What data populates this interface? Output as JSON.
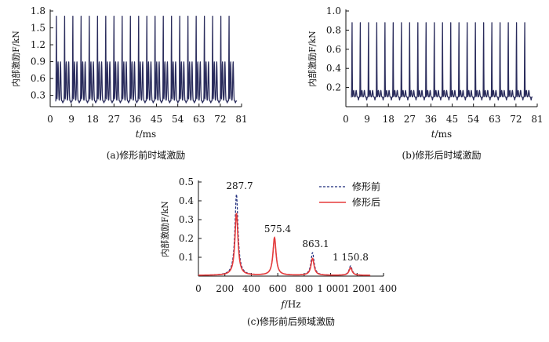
{
  "chart_data": [
    {
      "id": "a",
      "type": "line",
      "caption": "(a)修形前时域激励",
      "ylabel": "内部激励F/kN",
      "xlabel_italic": "t",
      "xlabel_unit": "/ms",
      "xlim": [
        0,
        81
      ],
      "ylim": [
        0.1,
        1.8
      ],
      "xticks": [
        0,
        9,
        18,
        27,
        36,
        45,
        54,
        63,
        72,
        81
      ],
      "yticks": [
        0.3,
        0.6,
        0.9,
        1.2,
        1.5,
        1.8
      ],
      "ytick_labels": [
        "0.3",
        "0.6",
        "0.9",
        "1.2",
        "1.5",
        "1.8"
      ],
      "series": [
        {
          "name": "修形前",
          "color": "#2a2c5c",
          "period_ms": 3.48,
          "x_start": 2.2,
          "x_end": 79,
          "peak_main": 1.75,
          "peak_secondary": 0.9,
          "trough": 0.17,
          "baseline": 0.2
        }
      ]
    },
    {
      "id": "b",
      "type": "line",
      "caption": "(b)修形后时域激励",
      "ylabel": "内部激励F/kN",
      "xlabel_italic": "t",
      "xlabel_unit": "/ms",
      "xlim": [
        0,
        81
      ],
      "ylim": [
        0.0,
        1.0
      ],
      "xticks": [
        0,
        9,
        18,
        27,
        36,
        45,
        54,
        63,
        72,
        81
      ],
      "yticks": [
        0.2,
        0.4,
        0.6,
        0.8,
        1.0
      ],
      "ytick_labels": [
        "0.2",
        "0.4",
        "0.6",
        "0.8",
        "1.0"
      ],
      "series": [
        {
          "name": "修形后",
          "color": "#2a2c5c",
          "period_ms": 3.48,
          "x_start": 2.2,
          "x_end": 79,
          "peak_main": 0.9,
          "peak_secondary": 0.17,
          "trough": 0.07,
          "baseline": 0.1
        }
      ]
    },
    {
      "id": "c",
      "type": "line",
      "caption": "(c)修形前后频域激励",
      "ylabel": "内部激励F/kN",
      "xlabel_italic": "f",
      "xlabel_unit": "/Hz",
      "xlim": [
        0,
        1400
      ],
      "ylim": [
        0,
        0.5
      ],
      "xticks": [
        0,
        200,
        400,
        600,
        800,
        1000,
        1200,
        1400
      ],
      "xtick_labels": [
        "0",
        "200",
        "400",
        "600",
        "800",
        "1 000",
        "1 200",
        "1 400"
      ],
      "yticks": [
        0.1,
        0.2,
        0.3,
        0.4,
        0.5
      ],
      "ytick_labels": [
        "0.1",
        "0.2",
        "0.3",
        "0.4",
        "0.5"
      ],
      "legend_position": "top-right",
      "annotations": [
        {
          "text": "287.7",
          "x": 287.7,
          "y": 0.43
        },
        {
          "text": "575.4",
          "x": 575.4,
          "y": 0.2
        },
        {
          "text": "863.1",
          "x": 863.1,
          "y": 0.12
        },
        {
          "text": "1 150.8",
          "x": 1150.8,
          "y": 0.05
        }
      ],
      "series": [
        {
          "name": "修形前",
          "style": "dashed",
          "color": "#1c2a7a",
          "peaks": [
            {
              "f": 287.7,
              "amp": 0.43
            },
            {
              "f": 575.4,
              "amp": 0.2
            },
            {
              "f": 863.1,
              "amp": 0.12
            },
            {
              "f": 1150.8,
              "amp": 0.05
            }
          ]
        },
        {
          "name": "修形后",
          "style": "solid",
          "color": "#e63b3b",
          "peaks": [
            {
              "f": 287.7,
              "amp": 0.33
            },
            {
              "f": 575.4,
              "amp": 0.2
            },
            {
              "f": 863.1,
              "amp": 0.09
            },
            {
              "f": 1150.8,
              "amp": 0.04
            }
          ]
        }
      ]
    }
  ]
}
